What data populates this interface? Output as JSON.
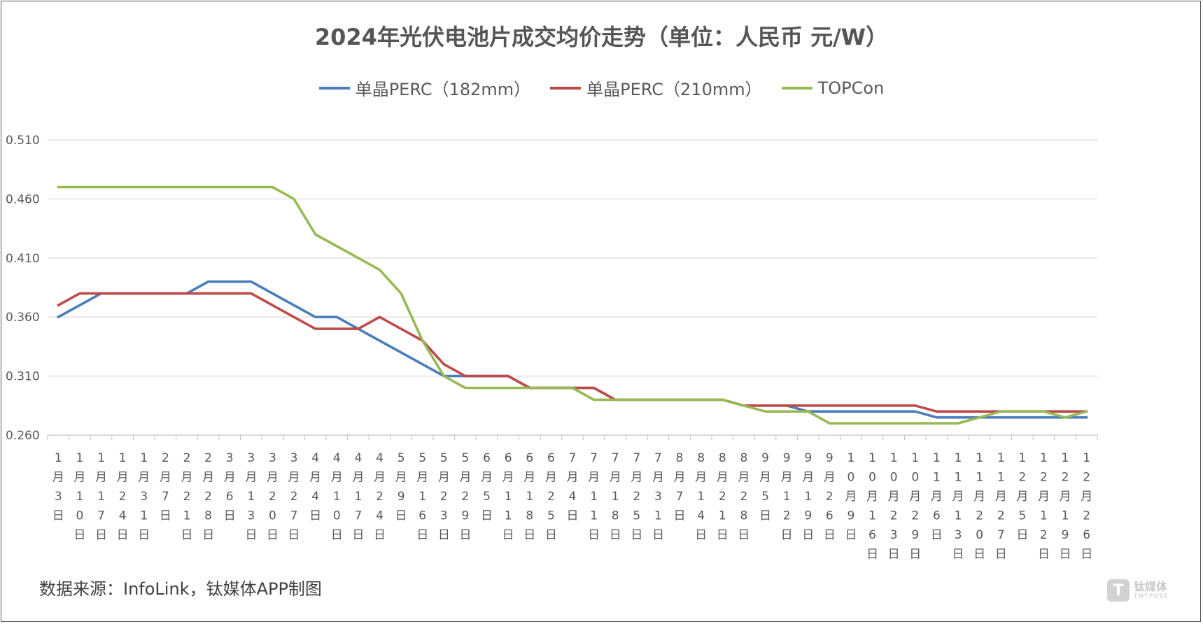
{
  "chart_data": {
    "type": "line",
    "title": "2024年光伏电池片成交均价走势（单位：人民币 元/W）",
    "categories": [
      "1月3日",
      "1月10日",
      "1月17日",
      "1月24日",
      "1月31日",
      "2月7日",
      "2月21日",
      "2月28日",
      "3月6日",
      "3月13日",
      "3月20日",
      "3月27日",
      "4月4日",
      "4月10日",
      "4月17日",
      "4月24日",
      "5月9日",
      "5月16日",
      "5月23日",
      "5月29日",
      "6月5日",
      "6月11日",
      "6月18日",
      "6月25日",
      "7月4日",
      "7月11日",
      "7月18日",
      "7月25日",
      "7月31日",
      "8月7日",
      "8月14日",
      "8月21日",
      "8月28日",
      "9月5日",
      "9月12日",
      "9月19日",
      "9月26日",
      "10月9日",
      "10月16日",
      "10月23日",
      "10月29日",
      "11月6日",
      "11月13日",
      "11月20日",
      "11月27日",
      "12月5日",
      "12月12日",
      "12月19日",
      "12月26日"
    ],
    "series": [
      {
        "name": "单晶PERC（182mm）",
        "color": "#4a7ebb",
        "values": [
          0.36,
          0.37,
          0.38,
          0.38,
          0.38,
          0.38,
          0.38,
          0.39,
          0.39,
          0.39,
          0.38,
          0.37,
          0.36,
          0.36,
          0.35,
          0.34,
          0.33,
          0.32,
          0.31,
          0.31,
          0.31,
          0.31,
          0.3,
          0.3,
          0.3,
          0.3,
          0.29,
          0.29,
          0.29,
          0.29,
          0.29,
          0.29,
          0.285,
          0.285,
          0.285,
          0.28,
          0.28,
          0.28,
          0.28,
          0.28,
          0.28,
          0.275,
          0.275,
          0.275,
          0.275,
          0.275,
          0.275,
          0.275,
          0.275
        ]
      },
      {
        "name": "单晶PERC（210mm）",
        "color": "#be4b48",
        "values": [
          0.37,
          0.38,
          0.38,
          0.38,
          0.38,
          0.38,
          0.38,
          0.38,
          0.38,
          0.38,
          0.37,
          0.36,
          0.35,
          0.35,
          0.35,
          0.36,
          0.35,
          0.34,
          0.32,
          0.31,
          0.31,
          0.31,
          0.3,
          0.3,
          0.3,
          0.3,
          0.29,
          0.29,
          0.29,
          0.29,
          0.29,
          0.29,
          0.285,
          0.285,
          0.285,
          0.285,
          0.285,
          0.285,
          0.285,
          0.285,
          0.285,
          0.28,
          0.28,
          0.28,
          0.28,
          0.28,
          0.28,
          0.28,
          0.28
        ]
      },
      {
        "name": "TOPCon",
        "color": "#98b954",
        "values": [
          0.47,
          0.47,
          0.47,
          0.47,
          0.47,
          0.47,
          0.47,
          0.47,
          0.47,
          0.47,
          0.47,
          0.46,
          0.43,
          0.42,
          0.41,
          0.4,
          0.38,
          0.34,
          0.31,
          0.3,
          0.3,
          0.3,
          0.3,
          0.3,
          0.3,
          0.29,
          0.29,
          0.29,
          0.29,
          0.29,
          0.29,
          0.29,
          0.285,
          0.28,
          0.28,
          0.28,
          0.27,
          0.27,
          0.27,
          0.27,
          0.27,
          0.27,
          0.27,
          0.275,
          0.28,
          0.28,
          0.28,
          0.275,
          0.28
        ]
      }
    ],
    "yticks": [
      "0.510",
      "0.460",
      "0.410",
      "0.360",
      "0.310",
      "0.260"
    ],
    "ylim": [
      0.26,
      0.51
    ],
    "legend_position": "top",
    "grid": true
  },
  "footer": {
    "source": "数据来源：InfoLink，钛媒体APP制图"
  },
  "watermark": {
    "logo_letter": "T",
    "cn": "钛媒体",
    "en": "TMTPOST"
  }
}
